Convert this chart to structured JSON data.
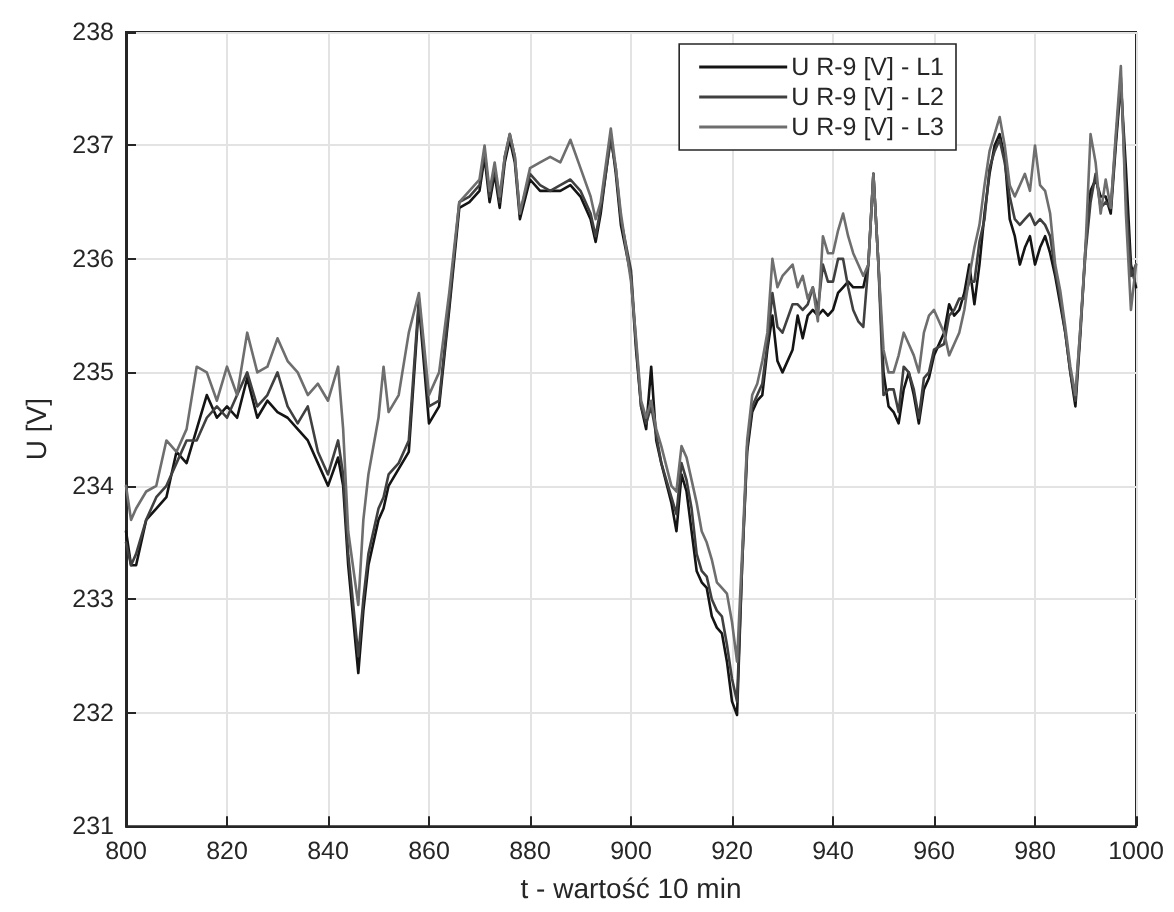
{
  "chart_data": {
    "type": "line",
    "xlabel": "t - wartość 10 min",
    "ylabel": "U [V]",
    "xlim": [
      800,
      1000
    ],
    "xticks": [
      800,
      820,
      840,
      860,
      880,
      900,
      920,
      940,
      960,
      980,
      1000
    ],
    "ylim": [
      231,
      238
    ],
    "yticks": [
      231,
      232,
      233,
      234,
      235,
      236,
      237,
      238
    ],
    "grid": true,
    "legend": "top right",
    "marker": "none",
    "line_style": "solid",
    "x": [
      800,
      801,
      802,
      804,
      806,
      808,
      810,
      812,
      814,
      816,
      818,
      820,
      822,
      824,
      826,
      828,
      830,
      832,
      834,
      836,
      838,
      840,
      842,
      843,
      844,
      846,
      847,
      848,
      850,
      851,
      852,
      854,
      856,
      858,
      860,
      862,
      864,
      866,
      868,
      870,
      871,
      872,
      873,
      874,
      875,
      876,
      877,
      878,
      880,
      882,
      884,
      886,
      888,
      890,
      892,
      893,
      894,
      896,
      897,
      898,
      900,
      901,
      902,
      903,
      904,
      905,
      906,
      908,
      909,
      910,
      911,
      912,
      913,
      914,
      915,
      916,
      917,
      918,
      919,
      920,
      921,
      922,
      923,
      924,
      925,
      926,
      927,
      928,
      929,
      930,
      932,
      933,
      934,
      935,
      936,
      937,
      938,
      939,
      940,
      941,
      942,
      943,
      944,
      945,
      946,
      947,
      948,
      949,
      950,
      951,
      952,
      953,
      954,
      955,
      956,
      957,
      958,
      959,
      960,
      962,
      963,
      964,
      965,
      966,
      967,
      968,
      969,
      970,
      971,
      972,
      973,
      974,
      975,
      976,
      977,
      978,
      979,
      980,
      981,
      982,
      983,
      984,
      985,
      986,
      987,
      988,
      989,
      990,
      991,
      992,
      993,
      994,
      995,
      996,
      997,
      998,
      999,
      1000
    ],
    "series": [
      {
        "name": "U R-9 [V] - L1",
        "color": "#141414",
        "values": [
          233.6,
          233.3,
          233.3,
          233.7,
          233.8,
          233.9,
          234.3,
          234.2,
          234.5,
          234.8,
          234.6,
          234.7,
          234.6,
          234.95,
          234.6,
          234.75,
          234.65,
          234.6,
          234.5,
          234.4,
          234.2,
          234.0,
          234.25,
          234.0,
          233.3,
          232.35,
          232.9,
          233.3,
          233.7,
          233.8,
          234.0,
          234.15,
          234.3,
          235.6,
          234.55,
          234.7,
          235.55,
          236.45,
          236.5,
          236.6,
          236.9,
          236.5,
          236.75,
          236.45,
          236.85,
          237.05,
          236.85,
          236.35,
          236.7,
          236.6,
          236.6,
          236.6,
          236.65,
          236.55,
          236.35,
          236.15,
          236.4,
          237.1,
          236.75,
          236.3,
          235.85,
          235.2,
          234.7,
          234.5,
          235.05,
          234.4,
          234.2,
          233.85,
          233.6,
          234.1,
          233.95,
          233.6,
          233.25,
          233.15,
          233.1,
          232.85,
          232.75,
          232.7,
          232.45,
          232.1,
          231.98,
          233.3,
          234.3,
          234.65,
          234.75,
          234.8,
          235.2,
          235.5,
          235.1,
          235.0,
          235.2,
          235.5,
          235.3,
          235.5,
          235.55,
          235.5,
          235.55,
          235.5,
          235.55,
          235.7,
          235.75,
          235.8,
          235.75,
          235.75,
          235.75,
          235.95,
          236.75,
          235.95,
          235.0,
          234.7,
          234.65,
          234.55,
          234.85,
          235.0,
          234.8,
          234.55,
          234.85,
          234.95,
          235.15,
          235.35,
          235.6,
          235.5,
          235.55,
          235.7,
          235.95,
          235.6,
          235.95,
          236.4,
          236.75,
          237.0,
          237.1,
          236.9,
          236.35,
          236.2,
          235.95,
          236.1,
          236.2,
          235.95,
          236.1,
          236.2,
          236.05,
          235.85,
          235.6,
          235.35,
          235.0,
          234.7,
          235.35,
          236.1,
          236.6,
          236.7,
          236.55,
          236.55,
          236.4,
          237.0,
          237.55,
          236.8,
          235.95,
          235.75
        ]
      },
      {
        "name": "U R-9 [V] - L2",
        "color": "#404040",
        "values": [
          233.5,
          233.3,
          233.4,
          233.7,
          233.9,
          234.0,
          234.2,
          234.4,
          234.4,
          234.6,
          234.7,
          234.6,
          234.8,
          235.0,
          234.7,
          234.8,
          235.0,
          234.7,
          234.55,
          234.7,
          234.3,
          234.1,
          234.4,
          234.1,
          233.4,
          232.5,
          233.0,
          233.4,
          233.8,
          233.9,
          234.1,
          234.2,
          234.4,
          235.65,
          234.7,
          234.75,
          235.6,
          236.5,
          236.55,
          236.65,
          236.95,
          236.55,
          236.8,
          236.5,
          236.9,
          237.1,
          236.9,
          236.4,
          236.75,
          236.65,
          236.6,
          236.65,
          236.7,
          236.6,
          236.4,
          236.2,
          236.45,
          237.05,
          236.8,
          236.35,
          235.9,
          235.25,
          234.7,
          234.55,
          234.7,
          234.45,
          234.2,
          233.9,
          233.75,
          234.2,
          234.05,
          233.8,
          233.4,
          233.25,
          233.2,
          233.0,
          232.9,
          232.85,
          232.6,
          232.3,
          232.1,
          233.3,
          234.35,
          234.7,
          234.8,
          234.9,
          235.25,
          235.7,
          235.4,
          235.35,
          235.6,
          235.6,
          235.55,
          235.6,
          235.75,
          235.55,
          235.95,
          235.8,
          235.8,
          236.0,
          236.0,
          235.75,
          235.55,
          235.45,
          235.4,
          235.95,
          236.75,
          235.95,
          234.8,
          234.85,
          234.85,
          234.65,
          235.05,
          235.0,
          234.85,
          234.6,
          234.95,
          235.0,
          235.2,
          235.25,
          235.5,
          235.55,
          235.65,
          235.65,
          235.8,
          235.8,
          236.15,
          236.35,
          236.8,
          236.95,
          237.05,
          236.85,
          236.55,
          236.35,
          236.3,
          236.35,
          236.4,
          236.3,
          236.35,
          236.3,
          236.2,
          235.9,
          235.65,
          235.35,
          235.0,
          234.75,
          235.4,
          236.05,
          236.5,
          236.75,
          236.45,
          236.5,
          236.45,
          237.05,
          237.6,
          236.55,
          235.85,
          235.95
        ]
      },
      {
        "name": "U R-9 [V] - L3",
        "color": "#6e6e6e",
        "values": [
          234.0,
          233.7,
          233.8,
          233.95,
          234.0,
          234.4,
          234.3,
          234.5,
          235.05,
          235.0,
          234.75,
          235.05,
          234.8,
          235.35,
          235.0,
          235.05,
          235.3,
          235.1,
          235.0,
          234.8,
          234.9,
          234.75,
          235.05,
          234.5,
          233.6,
          232.95,
          233.7,
          234.1,
          234.6,
          235.05,
          234.65,
          234.8,
          235.35,
          235.7,
          234.8,
          235.0,
          235.7,
          236.5,
          236.6,
          236.7,
          237.0,
          236.6,
          236.85,
          236.55,
          236.9,
          237.1,
          236.9,
          236.4,
          236.8,
          236.85,
          236.9,
          236.85,
          237.05,
          236.8,
          236.55,
          236.35,
          236.5,
          237.15,
          236.8,
          236.4,
          235.8,
          235.3,
          234.75,
          234.6,
          234.75,
          234.5,
          234.35,
          234.0,
          233.95,
          234.35,
          234.25,
          234.05,
          233.85,
          233.6,
          233.5,
          233.35,
          233.15,
          233.1,
          233.05,
          232.8,
          232.45,
          233.4,
          234.4,
          234.8,
          234.9,
          235.1,
          235.35,
          236.0,
          235.75,
          235.85,
          235.95,
          235.75,
          235.85,
          235.65,
          235.75,
          235.45,
          236.2,
          236.05,
          236.05,
          236.25,
          236.4,
          236.2,
          236.05,
          235.95,
          235.85,
          235.95,
          236.75,
          235.95,
          235.2,
          235.0,
          235.0,
          235.15,
          235.35,
          235.25,
          235.15,
          235.0,
          235.35,
          235.5,
          235.55,
          235.35,
          235.15,
          235.25,
          235.35,
          235.55,
          235.85,
          236.1,
          236.3,
          236.65,
          236.95,
          237.1,
          237.25,
          237.0,
          236.65,
          236.55,
          236.65,
          236.75,
          236.6,
          237.0,
          236.65,
          236.6,
          236.4,
          235.95,
          235.72,
          235.4,
          235.05,
          234.8,
          235.4,
          236.1,
          237.1,
          236.85,
          236.4,
          236.7,
          236.45,
          237.1,
          237.7,
          236.4,
          235.55,
          235.95
        ]
      }
    ]
  }
}
